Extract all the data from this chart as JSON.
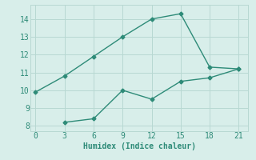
{
  "line1_x": [
    0,
    3,
    6,
    9,
    12,
    15,
    18,
    21
  ],
  "line1_y": [
    9.9,
    10.8,
    11.9,
    13.0,
    14.0,
    14.3,
    11.3,
    11.2
  ],
  "line2_x": [
    3,
    6,
    9,
    12,
    15,
    18,
    21
  ],
  "line2_y": [
    8.2,
    8.4,
    10.0,
    9.5,
    10.5,
    10.7,
    11.2
  ],
  "line_color": "#2e8b78",
  "bg_color": "#d8eeea",
  "grid_color": "#b8d8d2",
  "xlabel": "Humidex (Indice chaleur)",
  "xlabel_fontsize": 7,
  "xticks": [
    0,
    3,
    6,
    9,
    12,
    15,
    18,
    21
  ],
  "yticks": [
    8,
    9,
    10,
    11,
    12,
    13,
    14
  ],
  "xlim": [
    -0.5,
    22
  ],
  "ylim": [
    7.7,
    14.8
  ],
  "tick_fontsize": 7,
  "marker": "D",
  "marker_size": 2.5,
  "line_width": 1.0
}
